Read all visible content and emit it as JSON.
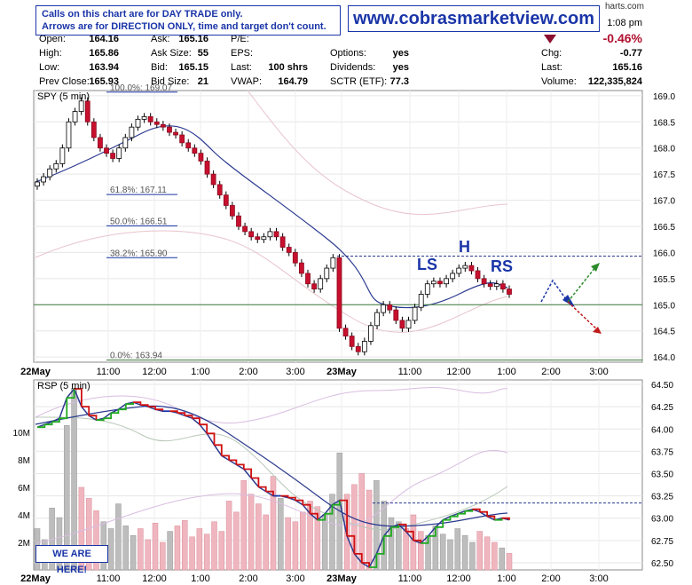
{
  "header": {
    "notice_line1": "Calls on this chart are for DAY TRADE only.",
    "notice_line2": "Arrows are for DIRECTION ONLY, time and target don't count.",
    "site_url": "www.cobrasmarketview.com",
    "corner_text": "harts.com",
    "time": "1:08 pm",
    "change_pct": "-0.46%",
    "fields": {
      "open": {
        "label": "Open:",
        "value": "164.16"
      },
      "high": {
        "label": "High:",
        "value": "165.86"
      },
      "low": {
        "label": "Low:",
        "value": "163.94"
      },
      "prev_close": {
        "label": "Prev Close:",
        "value": "165.93"
      },
      "ask": {
        "label": "Ask:",
        "value": "165.16"
      },
      "ask_size": {
        "label": "Ask Size:",
        "value": "55"
      },
      "bid": {
        "label": "Bid:",
        "value": "165.15"
      },
      "bid_size": {
        "label": "Bid Size:",
        "value": "21"
      },
      "pe": {
        "label": "P/E:",
        "value": ""
      },
      "eps": {
        "label": "EPS:",
        "value": ""
      },
      "last_shrs": {
        "label": "Last:",
        "value": "100 shrs"
      },
      "vwap": {
        "label": "VWAP:",
        "value": "164.79"
      },
      "options": {
        "label": "Options:",
        "value": "yes"
      },
      "dividends": {
        "label": "Dividends:",
        "value": "yes"
      },
      "sctr": {
        "label": "SCTR (ETF):",
        "value": "77.3"
      },
      "chg": {
        "label": "Chg:",
        "value": "-0.77"
      },
      "last": {
        "label": "Last:",
        "value": "165.16"
      },
      "volume": {
        "label": "Volume:",
        "value": "122,335,824"
      }
    },
    "colors": {
      "blue": "#1a35a8",
      "down": "#b01030"
    }
  },
  "we_are_here": "WE ARE HERE!",
  "chart_data": [
    {
      "type": "candlestick",
      "title": "SPY (5 min)",
      "ylim": [
        163.9,
        169.1
      ],
      "yticks": [
        "169.0",
        "168.5",
        "168.0",
        "167.5",
        "167.0",
        "166.5",
        "166.0",
        "165.5",
        "165.0",
        "164.5",
        "164.0"
      ],
      "ytick_values": [
        169.0,
        168.5,
        168.0,
        167.5,
        167.0,
        166.5,
        166.0,
        165.5,
        165.0,
        164.5,
        164.0
      ],
      "xticks": [
        "22May",
        "11:00",
        "12:00",
        "1:00",
        "2:00",
        "3:00",
        "23May",
        "11:00",
        "12:00",
        "1:00",
        "2:00",
        "3:00"
      ],
      "fib_levels": [
        {
          "label": "100.0%: 169.07",
          "value": 169.07
        },
        {
          "label": "61.8%: 167.11",
          "value": 167.11
        },
        {
          "label": "50.0%: 166.51",
          "value": 166.51
        },
        {
          "label": "38.2%: 165.90",
          "value": 165.9
        },
        {
          "label": "0.0%: 163.94",
          "value": 163.94
        }
      ],
      "annotations": {
        "ls": "LS",
        "h": "H",
        "rs": "RS"
      },
      "support_level": 165.0,
      "neckline_level": 165.93,
      "close_path": [
        167.35,
        167.45,
        167.6,
        167.7,
        168.0,
        168.5,
        168.7,
        168.9,
        168.5,
        168.2,
        168.0,
        167.9,
        167.8,
        168.0,
        168.2,
        168.4,
        168.55,
        168.6,
        168.5,
        168.45,
        168.4,
        168.3,
        168.25,
        168.1,
        168.0,
        167.9,
        167.75,
        167.5,
        167.3,
        167.1,
        166.9,
        166.7,
        166.5,
        166.4,
        166.3,
        166.25,
        166.3,
        166.4,
        166.3,
        166.1,
        166.0,
        165.8,
        165.6,
        165.4,
        165.3,
        165.5,
        165.7,
        165.9,
        164.55,
        164.4,
        164.2,
        164.1,
        164.3,
        164.6,
        164.85,
        165.0,
        164.9,
        164.7,
        164.55,
        164.7,
        164.95,
        165.2,
        165.4,
        165.45,
        165.4,
        165.5,
        165.6,
        165.7,
        165.75,
        165.65,
        165.5,
        165.4,
        165.35,
        165.4,
        165.3,
        165.2
      ]
    },
    {
      "type": "line",
      "title": "RSP (5 min)",
      "ylim": [
        62.42,
        64.55
      ],
      "yticks": [
        "64.50",
        "64.25",
        "64.00",
        "63.75",
        "63.50",
        "63.25",
        "63.00",
        "62.75",
        "62.50"
      ],
      "ytick_values": [
        64.5,
        64.25,
        64.0,
        63.75,
        63.5,
        63.25,
        63.0,
        62.75,
        62.5
      ],
      "volume_ticks": [
        "10M",
        "8M",
        "6M",
        "4M",
        "2M"
      ],
      "volume_tick_values": [
        10,
        8,
        6,
        4,
        2
      ],
      "volume_max_m": 13.8,
      "xticks": [
        "22May",
        "11:00",
        "12:00",
        "1:00",
        "2:00",
        "3:00",
        "23May",
        "11:00",
        "12:00",
        "1:00",
        "2:00",
        "3:00"
      ],
      "reference_level": 63.17,
      "close_path": [
        64.02,
        64.05,
        64.08,
        64.12,
        64.35,
        64.45,
        64.25,
        64.15,
        64.1,
        64.12,
        64.18,
        64.22,
        64.28,
        64.3,
        64.27,
        64.25,
        64.22,
        64.2,
        64.2,
        64.18,
        64.15,
        64.12,
        64.05,
        63.95,
        63.82,
        63.7,
        63.65,
        63.6,
        63.55,
        63.45,
        63.35,
        63.3,
        63.25,
        63.25,
        63.23,
        63.2,
        63.15,
        63.05,
        62.98,
        63.05,
        63.15,
        63.2,
        62.8,
        62.6,
        62.5,
        62.45,
        62.6,
        62.8,
        62.9,
        62.93,
        62.85,
        62.75,
        62.72,
        62.8,
        62.9,
        62.98,
        63.02,
        63.05,
        63.08,
        63.1,
        63.07,
        63.02,
        62.98,
        63.0,
        62.98
      ],
      "volume_m": [
        3.0,
        2.2,
        4.5,
        3.8,
        10.5,
        13.2,
        6.0,
        5.2,
        4.3,
        3.5,
        3.0,
        4.8,
        3.2,
        2.5,
        3.0,
        2.2,
        3.4,
        2.0,
        2.8,
        3.2,
        3.6,
        2.4,
        3.0,
        2.6,
        3.5,
        2.8,
        5.0,
        4.2,
        6.5,
        5.5,
        4.8,
        4.0,
        6.8,
        5.2,
        3.8,
        3.5,
        4.2,
        5.0,
        4.6,
        4.0,
        5.5,
        8.5,
        5.5,
        6.2,
        7.0,
        5.8,
        6.5,
        5.0,
        3.8,
        3.5,
        3.0,
        4.0,
        2.8,
        2.5,
        3.2,
        2.6,
        2.2,
        3.0,
        2.5,
        2.0,
        2.8,
        2.4,
        2.0,
        1.6,
        1.2
      ]
    }
  ]
}
